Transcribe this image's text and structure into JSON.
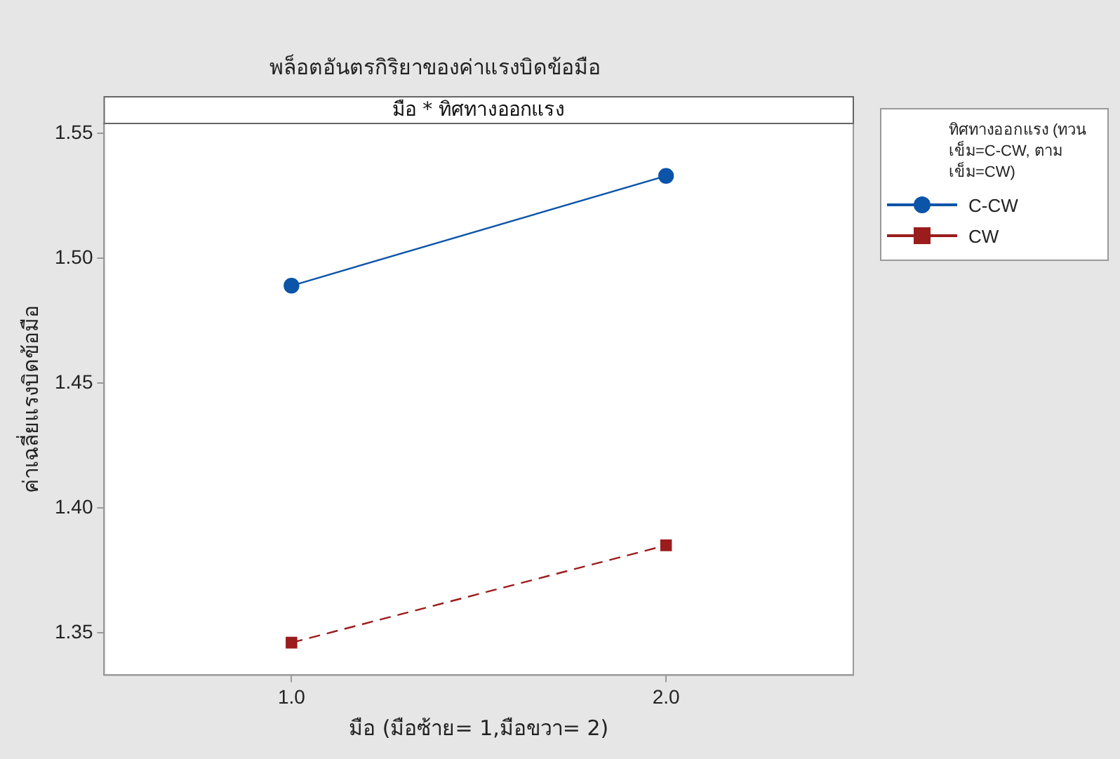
{
  "chart_data": {
    "type": "line",
    "title": "พล็อตอันตรกิริยาของค่าแรงบิดข้อมือ",
    "subtitle": "มือ * ทิศทางออกแรง",
    "xlabel": "มือ (มือซ้าย= 1,มือขวา= 2)",
    "ylabel": "ค่าเฉลี่ยแรงบิดข้อมือ",
    "legend_title": "ทิศทางออกแรง (ทวนเข็ม=C-CW, ตามเข็ม=CW)",
    "x": [
      1.0,
      2.0
    ],
    "series": [
      {
        "name": "C-CW",
        "color": "#0b54a8",
        "values": [
          1.489,
          1.533
        ],
        "marker": "circle",
        "line_style": "solid"
      },
      {
        "name": "CW",
        "color": "#9b1c1c",
        "values": [
          1.346,
          1.385
        ],
        "marker": "square",
        "line_style": "dashed"
      }
    ],
    "xlim": [
      0.5,
      2.5
    ],
    "xticks": [
      {
        "value": 1,
        "label": "1.0"
      },
      {
        "value": 2,
        "label": "2.0"
      }
    ],
    "ylim": [
      1.333,
      1.554
    ],
    "yticks": [
      {
        "value": 1.35,
        "label": "1.35"
      },
      {
        "value": 1.4,
        "label": "1.40"
      },
      {
        "value": 1.45,
        "label": "1.45"
      },
      {
        "value": 1.5,
        "label": "1.50"
      },
      {
        "value": 1.55,
        "label": "1.55"
      }
    ],
    "grid": false,
    "legend": "right"
  }
}
